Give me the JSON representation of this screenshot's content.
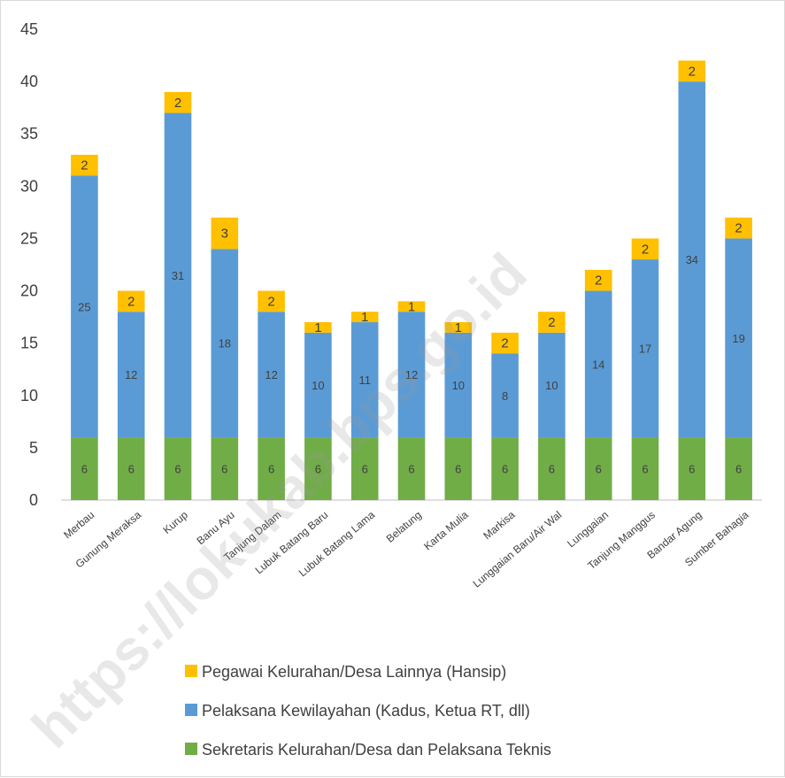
{
  "chart_data": {
    "type": "bar",
    "stacked": true,
    "categories": [
      "Merbau",
      "Gunung Meraksa",
      "Kurup",
      "Banu Ayu",
      "Tanjung Dalam",
      "Lubuk Batang Baru",
      "Lubuk Batang Lama",
      "Belatung",
      "Karta Mulia",
      "Markisa",
      "Lunggaian Baru/Air Wal",
      "Lunggaian",
      "Tanjung Manggus",
      "Bandar Agung",
      "Sumber Bahagia"
    ],
    "series": [
      {
        "name": "Sekretaris Kelurahan/Desa dan Pelaksana Teknis",
        "color": "#70ad47",
        "values": [
          6,
          6,
          6,
          6,
          6,
          6,
          6,
          6,
          6,
          6,
          6,
          6,
          6,
          6,
          6
        ]
      },
      {
        "name": "Pelaksana Kewilayahan (Kadus, Ketua RT, dll)",
        "color": "#5b9bd5",
        "values": [
          25,
          12,
          31,
          18,
          12,
          10,
          11,
          12,
          10,
          8,
          10,
          14,
          17,
          34,
          19
        ]
      },
      {
        "name": "Pegawai Kelurahan/Desa Lainnya  (Hansip)",
        "color": "#ffc000",
        "values": [
          2,
          2,
          2,
          3,
          2,
          1,
          1,
          1,
          1,
          2,
          2,
          2,
          2,
          2,
          2
        ]
      }
    ],
    "ylim": [
      0,
      45
    ],
    "yticks": [
      0,
      5,
      10,
      15,
      20,
      25,
      30,
      35,
      40,
      45
    ],
    "title": "",
    "xlabel": "",
    "ylabel": "",
    "grid": false,
    "legend_position": "bottom",
    "legend_order": [
      2,
      1,
      0
    ]
  },
  "watermark": "https://lokukab.bps.go.id"
}
